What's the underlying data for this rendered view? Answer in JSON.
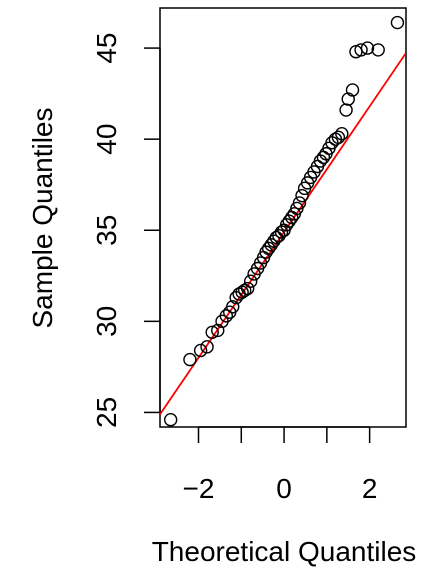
{
  "chart_data": {
    "type": "scatter",
    "title": "",
    "xlabel": "Theoretical Quantiles",
    "ylabel": "Sample Quantiles",
    "xlim": [
      -2.9,
      2.85
    ],
    "ylim": [
      24.2,
      47.2
    ],
    "x_ticks": [
      -2,
      -1,
      0,
      1,
      2
    ],
    "x_tick_labels": [
      "−2",
      "0",
      "2"
    ],
    "x_tick_label_values": [
      -2,
      0,
      2
    ],
    "y_ticks": [
      25,
      30,
      35,
      40,
      45
    ],
    "y_tick_labels": [
      "25",
      "30",
      "35",
      "40",
      "45"
    ],
    "grid": false,
    "point_style": "open-circle",
    "line_color": "#ff0000",
    "point_color": "#000000",
    "reference_line": {
      "intercept": 34.9,
      "slope": 3.45
    },
    "series": [
      {
        "x": [
          -2.65,
          -2.2,
          -1.95,
          -1.8,
          -1.68,
          -1.55,
          -1.45,
          -1.35,
          -1.27,
          -1.2,
          -1.12,
          -1.05,
          -0.98,
          -0.92,
          -0.85,
          -0.78,
          -0.7,
          -0.62,
          -0.55,
          -0.48,
          -0.42,
          -0.36,
          -0.3,
          -0.24,
          -0.18,
          -0.12,
          -0.06,
          0.0,
          0.06,
          0.12,
          0.18,
          0.24,
          0.3,
          0.36,
          0.42,
          0.48,
          0.55,
          0.62,
          0.7,
          0.78,
          0.85,
          0.92,
          0.98,
          1.05,
          1.12,
          1.2,
          1.27,
          1.35,
          1.45,
          1.5,
          1.6,
          1.68,
          1.8,
          1.95,
          2.2,
          2.65
        ],
        "y": [
          24.6,
          27.9,
          28.4,
          28.6,
          29.4,
          29.5,
          30.0,
          30.3,
          30.5,
          30.8,
          31.3,
          31.5,
          31.6,
          31.7,
          31.8,
          32.2,
          32.6,
          32.9,
          33.2,
          33.5,
          33.8,
          34.0,
          34.2,
          34.4,
          34.6,
          34.7,
          34.9,
          35.0,
          35.3,
          35.5,
          35.7,
          35.9,
          36.2,
          36.5,
          36.9,
          37.3,
          37.6,
          37.9,
          38.2,
          38.5,
          38.8,
          39.0,
          39.2,
          39.5,
          39.8,
          40.0,
          40.1,
          40.3,
          41.6,
          42.2,
          42.7,
          44.8,
          44.9,
          45.0,
          44.9,
          46.4
        ]
      }
    ]
  }
}
